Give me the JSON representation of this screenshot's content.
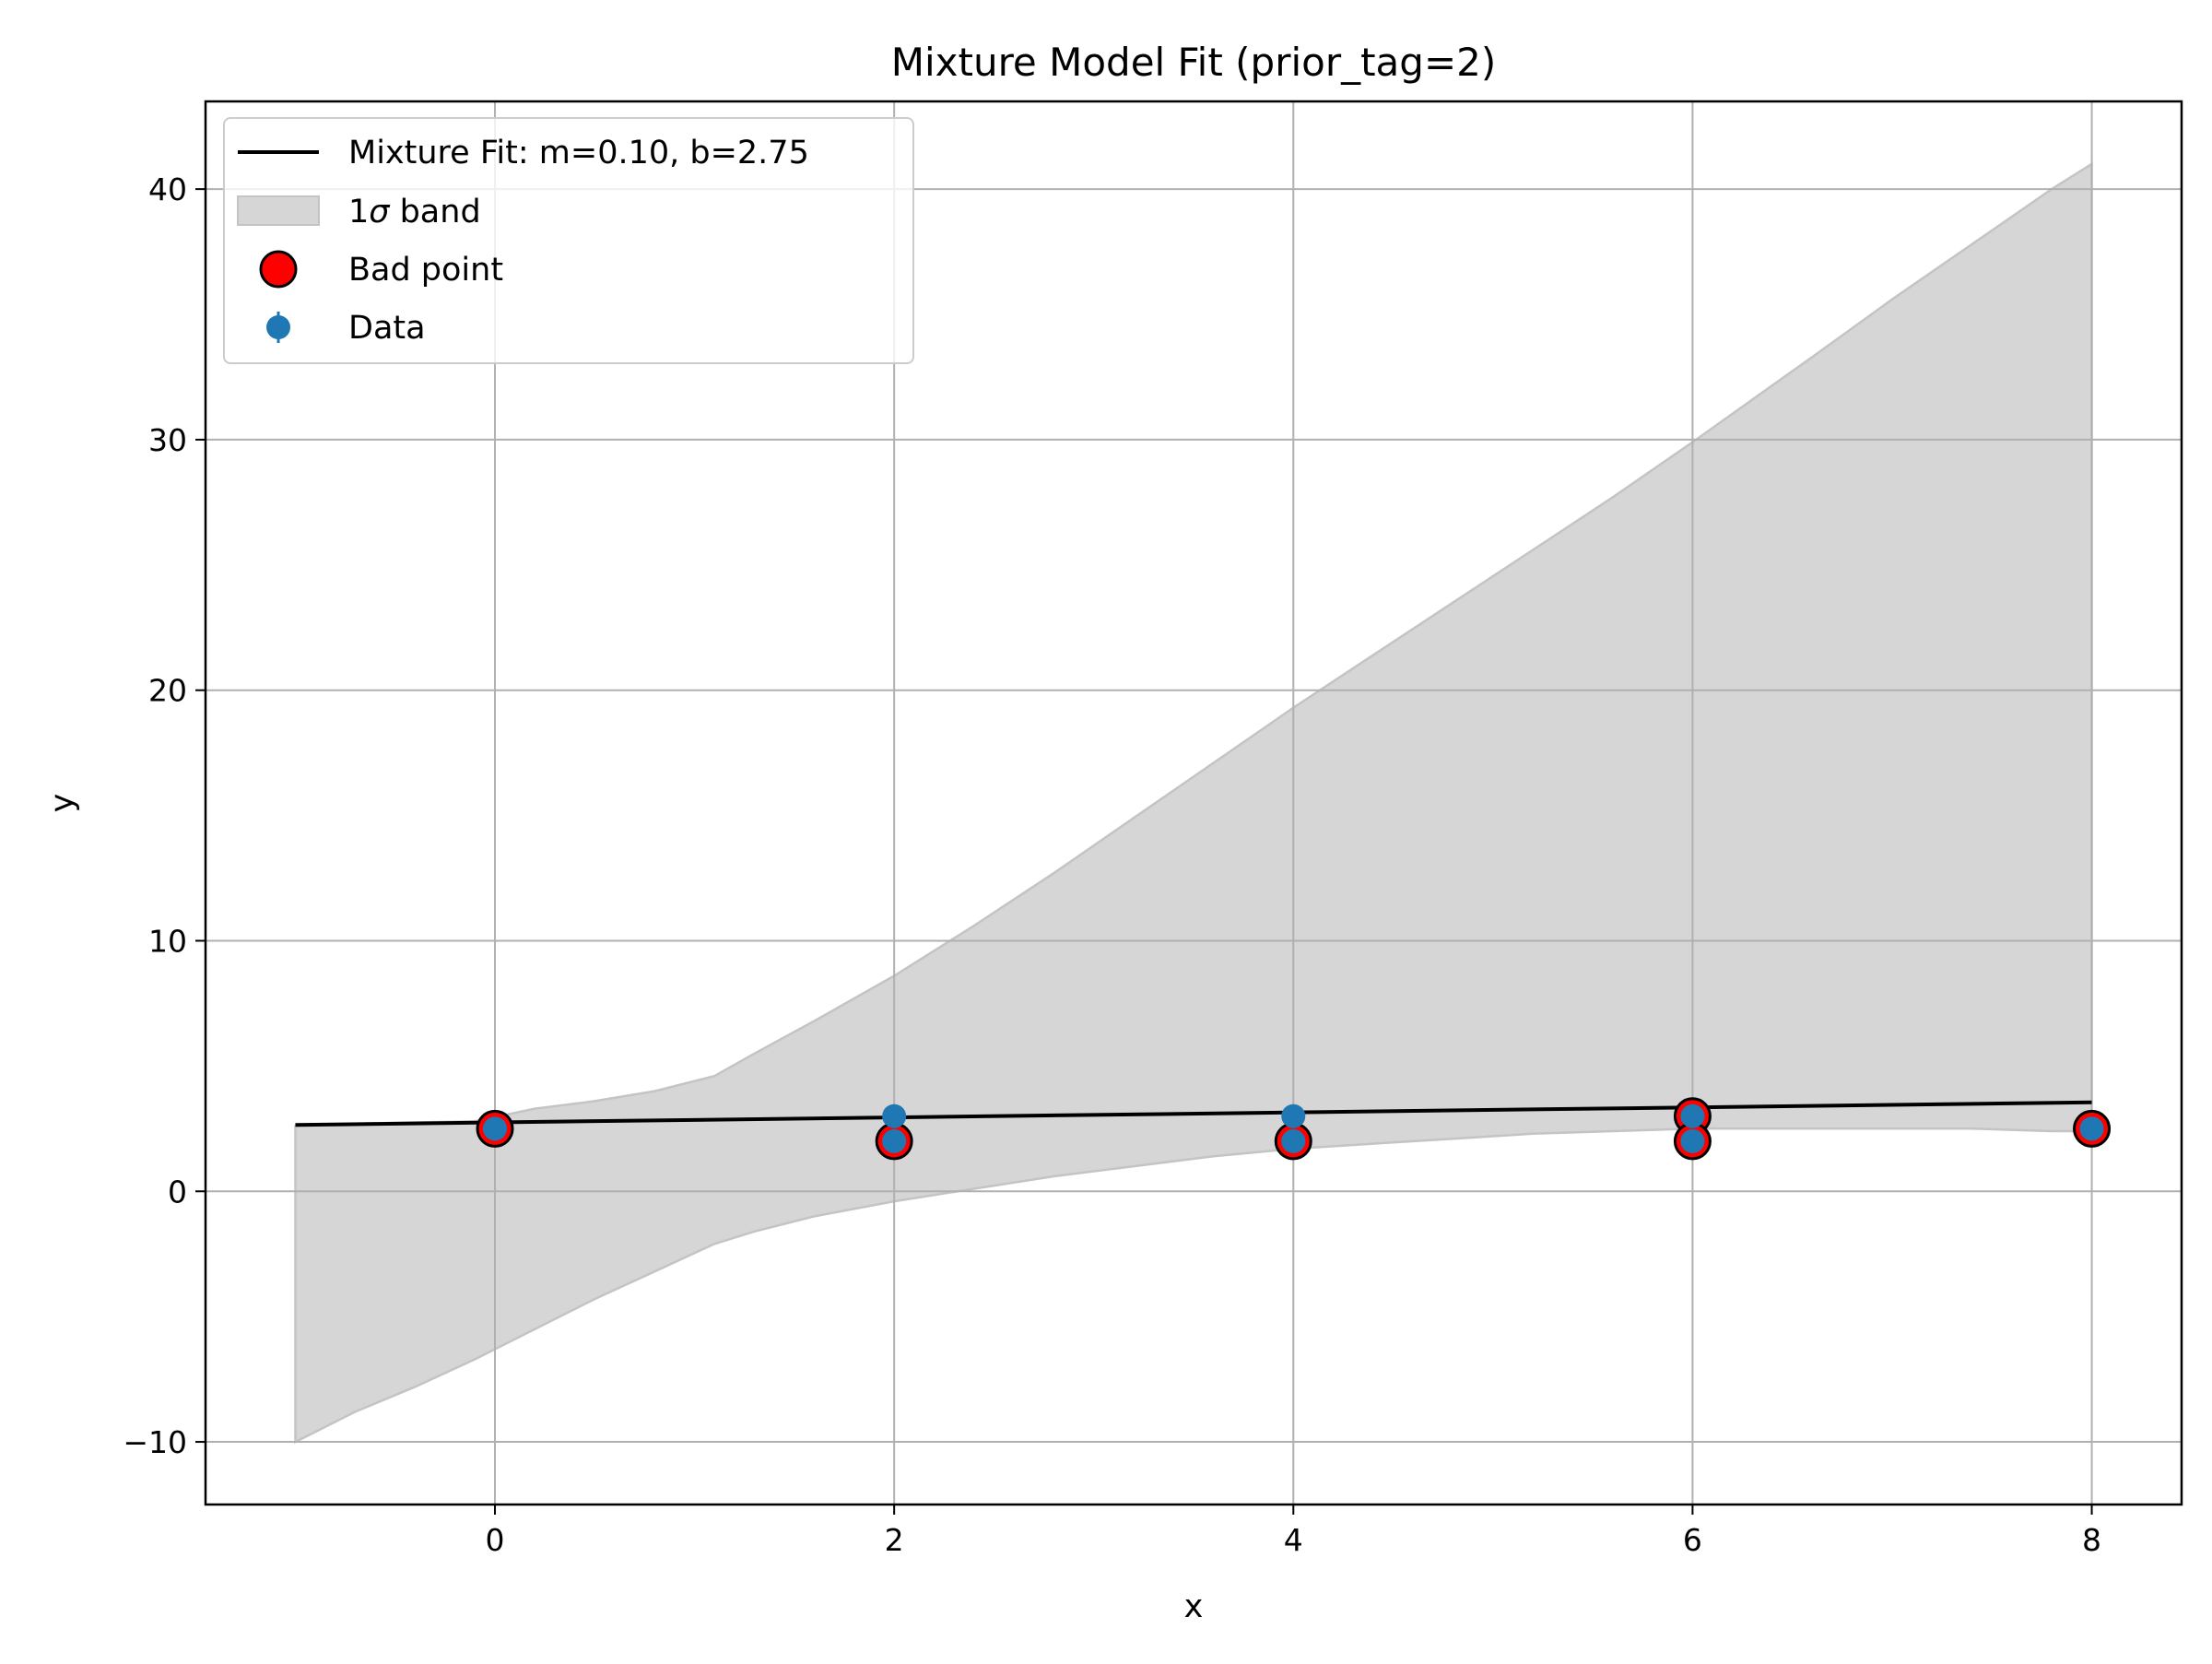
{
  "chart_data": {
    "type": "scatter",
    "title": "Mixture Model Fit (prior_tag=2)",
    "xlabel": "x",
    "ylabel": "y",
    "xlim": [
      -1.45,
      8.45
    ],
    "ylim": [
      -12.5,
      43.5
    ],
    "xticks": [
      0,
      2,
      4,
      6,
      8
    ],
    "yticks": [
      -10,
      0,
      10,
      20,
      30,
      40
    ],
    "xtick_labels": [
      "0",
      "2",
      "4",
      "6",
      "8"
    ],
    "ytick_labels": [
      "−10",
      "0",
      "10",
      "20",
      "30",
      "40"
    ],
    "grid": true,
    "legend_position": "top-left",
    "legend": {
      "fit_label": "Mixture Fit: m=0.10, b=2.75",
      "band_label_prefix": "1",
      "band_label_symbol": "σ",
      "band_label_suffix": " band",
      "bad_label": "Bad point",
      "data_label": "Data"
    },
    "fit_line": {
      "m": 0.1,
      "b": 2.75,
      "x_range": [
        -1,
        8
      ],
      "color": "#000000"
    },
    "band": {
      "color": "#d6d6d6",
      "edge_color": "#c4c4c4",
      "x": [
        -1,
        -0.7,
        -0.4,
        -0.1,
        0.2,
        0.5,
        0.8,
        1.1,
        1.3,
        1.6,
        2.0,
        2.4,
        2.8,
        3.2,
        3.6,
        4.0,
        4.4,
        4.8,
        5.2,
        5.6,
        6.0,
        6.3,
        6.6,
        7.0,
        7.4,
        7.8,
        8.0
      ],
      "upper": [
        2.6,
        2.7,
        2.75,
        2.8,
        3.3,
        3.6,
        4.0,
        4.6,
        5.5,
        6.8,
        8.6,
        10.6,
        12.7,
        14.9,
        17.1,
        19.3,
        21.4,
        23.5,
        25.6,
        27.7,
        29.9,
        31.6,
        33.3,
        35.6,
        37.8,
        40.0,
        41.0
      ],
      "lower": [
        -10.0,
        -8.8,
        -7.8,
        -6.7,
        -5.5,
        -4.3,
        -3.2,
        -2.1,
        -1.6,
        -1.0,
        -0.4,
        0.1,
        0.6,
        1.0,
        1.4,
        1.7,
        1.9,
        2.1,
        2.3,
        2.4,
        2.5,
        2.5,
        2.5,
        2.5,
        2.5,
        2.4,
        2.4
      ]
    },
    "bad_points": {
      "color": "#ff0000",
      "edge_color": "#000000",
      "x": [
        0,
        2,
        4,
        6,
        6,
        8
      ],
      "y": [
        2.5,
        2.0,
        2.0,
        3.0,
        2.0,
        2.5
      ]
    },
    "data_points": {
      "color": "#1f77b4",
      "x": [
        0,
        2,
        2,
        4,
        4,
        6,
        6,
        8
      ],
      "y": [
        2.5,
        3.0,
        2.0,
        3.0,
        2.0,
        3.0,
        2.0,
        2.5
      ]
    }
  }
}
